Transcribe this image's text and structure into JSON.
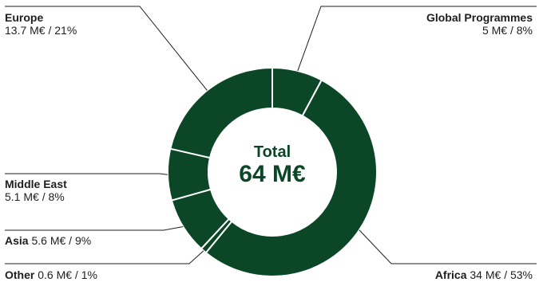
{
  "chart_data": {
    "type": "pie",
    "variant": "donut",
    "center": {
      "label": "Total",
      "value": "64 M€"
    },
    "slices": [
      {
        "key": "global",
        "name": "Global Programmes",
        "value_text": "5 M€ / 8%",
        "value": 5,
        "percent": 8
      },
      {
        "key": "africa",
        "name": "Africa",
        "value_text": "34 M€ / 53%",
        "value": 34,
        "percent": 53
      },
      {
        "key": "other",
        "name": "Other",
        "value_text": "0.6 M€ / 1%",
        "value": 0.6,
        "percent": 1
      },
      {
        "key": "asia",
        "name": "Asia",
        "value_text": "5.6 M€ / 9%",
        "value": 5.6,
        "percent": 9
      },
      {
        "key": "middle_east",
        "name": "Middle East",
        "value_text": "5.1 M€ / 8%",
        "value": 5.1,
        "percent": 8
      },
      {
        "key": "europe",
        "name": "Europe",
        "value_text": "13.7 M€ / 21%",
        "value": 13.7,
        "percent": 21
      }
    ]
  },
  "colors": {
    "slice": "#0b4726",
    "separator": "#ffffff",
    "leader": "#1e1e1e"
  }
}
